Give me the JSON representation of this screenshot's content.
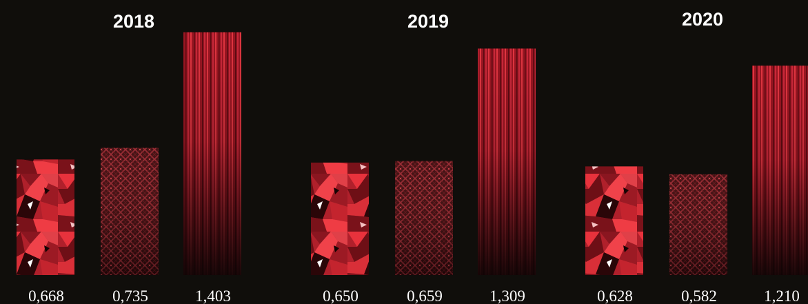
{
  "chart_data": {
    "type": "bar",
    "grid": false,
    "legend": "none",
    "ylim": [
      0,
      1.5
    ],
    "groups": [
      {
        "title": "2018",
        "labels": [
          "0,668",
          "0,735",
          "1,403"
        ],
        "values": [
          0.668,
          0.735,
          1.403
        ]
      },
      {
        "title": "2019",
        "labels": [
          "0,650",
          "0,659",
          "1,309"
        ],
        "values": [
          0.65,
          0.659,
          1.309
        ]
      },
      {
        "title": "2020",
        "labels": [
          "0,628",
          "0,582",
          "1,210"
        ],
        "values": [
          0.628,
          0.582,
          1.21
        ]
      }
    ],
    "bar_styles": [
      "crystal",
      "diamond-lattice",
      "vertical-stripes"
    ],
    "colors": {
      "background": "#100e0b",
      "bright_red": "#e8323c",
      "mid_red": "#b0202b",
      "dark_red": "#3a0a0e",
      "text": "#ffffff"
    }
  }
}
